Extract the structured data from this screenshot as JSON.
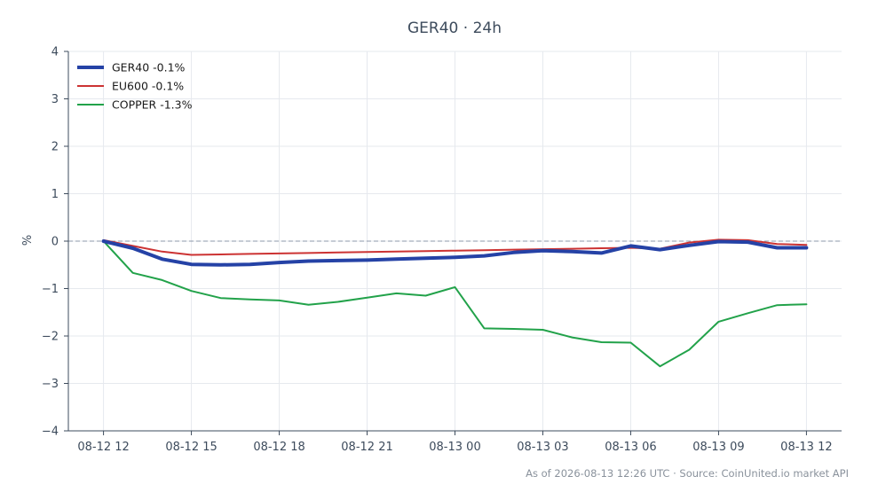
{
  "chart_data": {
    "type": "line",
    "title": "GER40 · 24h",
    "xlabel": "",
    "ylabel": "%",
    "ylim": [
      -4,
      4
    ],
    "yticks": [
      -4,
      -3,
      -2,
      -1,
      0,
      1,
      2,
      3,
      4
    ],
    "ytick_labels": [
      "−4",
      "−3",
      "−2",
      "−1",
      "0",
      "1",
      "2",
      "3",
      "4"
    ],
    "x_ticks": [
      "08-12 12",
      "08-12 15",
      "08-12 18",
      "08-12 21",
      "08-13 00",
      "08-13 03",
      "08-13 06",
      "08-13 09",
      "08-13 12"
    ],
    "x_hours": [
      0,
      3,
      6,
      9,
      12,
      15,
      18,
      21,
      24
    ],
    "xlim": [
      -1.2,
      25.2
    ],
    "grid": true,
    "zero_line": true,
    "legend_position": "top-left",
    "series": [
      {
        "name": "GER40 -0.1%",
        "color": "#2542a6",
        "emphasis": true,
        "x": [
          0,
          1,
          2,
          3,
          4,
          5,
          6,
          7,
          8,
          9,
          10,
          11,
          12,
          13,
          14,
          15,
          16,
          17,
          18,
          19,
          20,
          21,
          22,
          23,
          24
        ],
        "y": [
          0,
          -0.15,
          -0.38,
          -0.49,
          -0.5,
          -0.49,
          -0.45,
          -0.42,
          -0.41,
          -0.4,
          -0.38,
          -0.36,
          -0.34,
          -0.31,
          -0.24,
          -0.2,
          -0.22,
          -0.25,
          -0.1,
          -0.18,
          -0.09,
          -0.01,
          -0.02,
          -0.14,
          -0.14
        ]
      },
      {
        "name": "EU600 -0.1%",
        "color": "#cc3333",
        "emphasis": false,
        "x": [
          0,
          1,
          2,
          3,
          4,
          5,
          6,
          7,
          8,
          9,
          10,
          11,
          12,
          13,
          14,
          15,
          16,
          17,
          18,
          19,
          20,
          21,
          22,
          23,
          24
        ],
        "y": [
          0.02,
          -0.1,
          -0.22,
          -0.29,
          -0.28,
          -0.27,
          -0.26,
          -0.25,
          -0.24,
          -0.23,
          -0.22,
          -0.21,
          -0.2,
          -0.19,
          -0.18,
          -0.17,
          -0.16,
          -0.15,
          -0.14,
          -0.16,
          -0.03,
          0.03,
          0.02,
          -0.06,
          -0.08
        ]
      },
      {
        "name": "COPPER -1.3%",
        "color": "#22a24a",
        "emphasis": false,
        "x": [
          0,
          1,
          2,
          3,
          4,
          5,
          6,
          7,
          8,
          9,
          10,
          11,
          12,
          13,
          14,
          15,
          16,
          17,
          18,
          19,
          20,
          21,
          22,
          23,
          24
        ],
        "y": [
          0,
          -0.67,
          -0.82,
          -1.05,
          -1.2,
          -1.23,
          -1.25,
          -1.34,
          -1.28,
          -1.19,
          -1.1,
          -1.15,
          -0.97,
          -1.84,
          -1.85,
          -1.87,
          -2.03,
          -2.13,
          -2.14,
          -2.64,
          -2.29,
          -1.7,
          -1.52,
          -1.35,
          -1.33
        ]
      }
    ]
  },
  "footer": "As of 2026-08-13 12:26 UTC · Source: CoinUnited.io market API"
}
